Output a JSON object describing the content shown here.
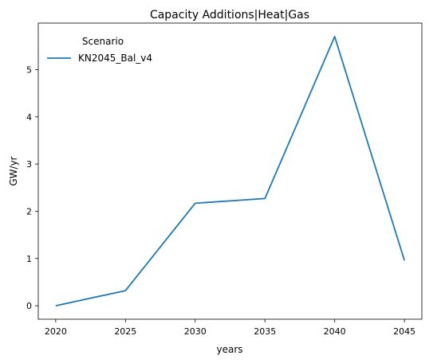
{
  "chart_data": {
    "type": "line",
    "title": "Capacity Additions|Heat|Gas",
    "xlabel": "years",
    "ylabel": "GW/yr",
    "x": [
      2020,
      2025,
      2030,
      2035,
      2040,
      2045
    ],
    "x_ticks": [
      "2020",
      "2025",
      "2030",
      "2035",
      "2040",
      "2045"
    ],
    "y_ticks": [
      "0",
      "1",
      "2",
      "3",
      "4",
      "5"
    ],
    "xlim": [
      2018.75,
      2046.25
    ],
    "ylim": [
      -0.285,
      5.985
    ],
    "grid": false,
    "legend": {
      "title": "Scenario",
      "placement": "top-left"
    },
    "series": [
      {
        "name": "KN2045_Bal_v4",
        "color": "#1f77b4",
        "values": [
          0.0,
          0.32,
          2.17,
          2.27,
          5.7,
          0.96
        ]
      }
    ]
  }
}
